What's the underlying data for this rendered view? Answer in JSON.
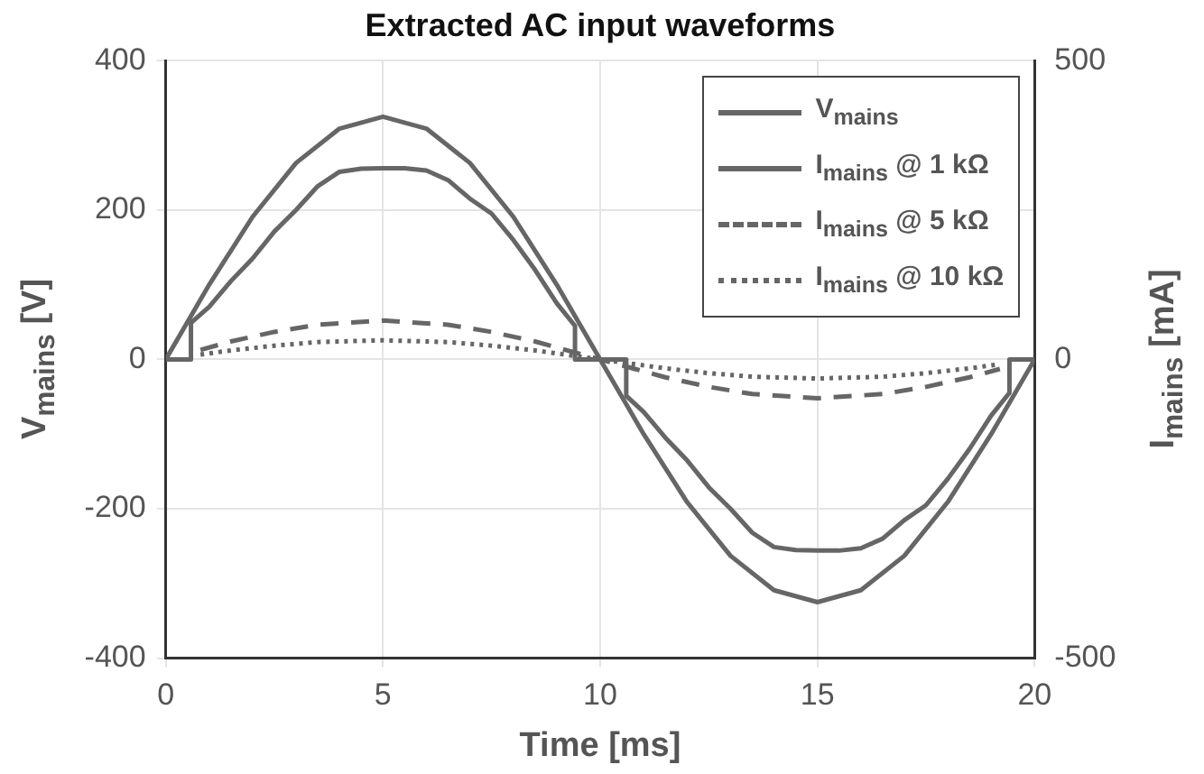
{
  "chart_data": {
    "type": "line",
    "title": "Extracted AC input waveforms",
    "xlabel": "Time [ms]",
    "ylabel": "V$_{mains}$ [V]",
    "y2label": "I$_{mains}$ [mA]",
    "xlim": [
      0,
      20
    ],
    "xticks": [
      0,
      5,
      10,
      15,
      20
    ],
    "ylim": [
      -400,
      400
    ],
    "yticks": [
      -400,
      -200,
      0,
      200,
      400
    ],
    "y2lim": [
      -500,
      500
    ],
    "y2ticks": [
      -500,
      0,
      500
    ],
    "grid": true,
    "legend": "top right",
    "series": [
      {
        "name": "V$_{mains}$",
        "color": "#666666",
        "line_style": "solid",
        "x": [
          0,
          1,
          2,
          3,
          4,
          5,
          6,
          7,
          8,
          9,
          10,
          11,
          12,
          13,
          14,
          15,
          16,
          17,
          18,
          19,
          20
        ],
        "values": [
          0,
          100,
          191,
          263,
          309,
          325,
          309,
          263,
          191,
          100,
          0,
          -100,
          -191,
          -263,
          -309,
          -325,
          -309,
          -263,
          -191,
          -100,
          0
        ]
      },
      {
        "name": "I$_{mains}$ @ 1 kΩ",
        "color": "#666666",
        "line_style": "solid",
        "axis": "y2",
        "x": [
          0,
          0.58,
          0.58,
          1,
          1.5,
          2,
          2.5,
          3,
          3.5,
          4,
          4.5,
          5,
          5.5,
          6,
          6.5,
          7,
          7.5,
          8,
          8.5,
          9,
          9.42,
          9.42,
          10.6,
          10.6,
          11,
          11.5,
          12,
          12.5,
          13,
          13.5,
          14,
          14.5,
          15,
          15.5,
          16,
          16.5,
          17,
          17.5,
          18,
          18.5,
          19,
          19.42,
          19.42,
          20
        ],
        "values": [
          0,
          0,
          61,
          88,
          131,
          169,
          214,
          250,
          290,
          314,
          319,
          320,
          320,
          316,
          300,
          269,
          244,
          200,
          150,
          94,
          56,
          0,
          0,
          -61,
          -88,
          -131,
          -169,
          -214,
          -250,
          -290,
          -314,
          -319,
          -320,
          -320,
          -316,
          -300,
          -269,
          -244,
          -200,
          -150,
          -94,
          -56,
          0,
          0
        ]
      },
      {
        "name": "I$_{mains}$ @ 5 kΩ",
        "color": "#666666",
        "line_style": "dashed",
        "axis": "y2",
        "x": [
          0.8,
          1.5,
          2.5,
          3.5,
          5,
          6.5,
          7.5,
          8.5,
          9.2,
          10.8,
          11.5,
          12.5,
          13.5,
          15,
          16.5,
          17.5,
          18.5,
          19.2
        ],
        "values": [
          16,
          30,
          46,
          58,
          65,
          58,
          46,
          30,
          16,
          -16,
          -30,
          -46,
          -58,
          -65,
          -58,
          -46,
          -30,
          -16
        ]
      },
      {
        "name": "I$_{mains}$ @ 10 kΩ",
        "color": "#666666",
        "line_style": "dotted",
        "axis": "y2",
        "x": [
          0.8,
          1.5,
          2.5,
          3.5,
          5,
          6.5,
          7.5,
          8.5,
          9.2,
          10.8,
          11.5,
          12.5,
          13.5,
          15,
          16.5,
          17.5,
          18.5,
          19.2
        ],
        "values": [
          8,
          15,
          23,
          29,
          32,
          29,
          23,
          15,
          8,
          -8,
          -15,
          -23,
          -29,
          -32,
          -29,
          -23,
          -15,
          -8
        ]
      }
    ]
  }
}
